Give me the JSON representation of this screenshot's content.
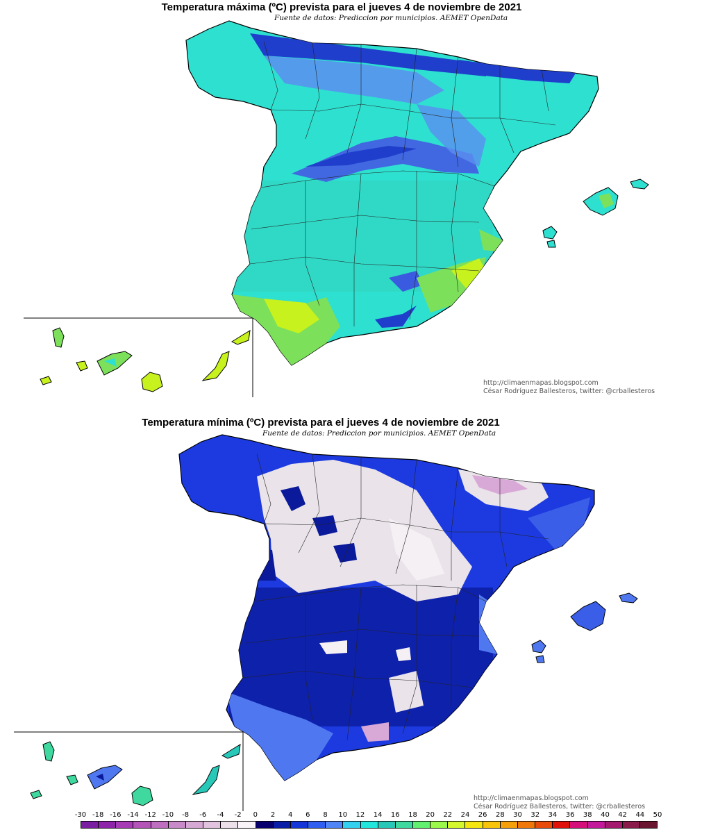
{
  "maps": {
    "max": {
      "title": "Temperatura máxima (ºC) prevista para el jueves 4 de noviembre de 2021",
      "source": "Fuente de datos: Prediccion por municipios. AEMET OpenData",
      "credit_url": "http://climaenmapas.blogspot.com",
      "credit_author": "César Rodríguez Ballesteros, twitter: @crballesteros"
    },
    "min": {
      "title": "Temperatura mínima (ºC) prevista para el jueves 4 de noviembre de 2021",
      "source": "Fuente de datos: Prediccion por municipios. AEMET OpenData",
      "credit_url": "http://climaenmapas.blogspot.com",
      "credit_author": "César Rodríguez Ballesteros, twitter: @crballesteros"
    }
  },
  "legend": {
    "labels": [
      "-30",
      "-18",
      "-16",
      "-14",
      "-12",
      "-10",
      "-8",
      "-6",
      "-4",
      "-2",
      "0",
      "2",
      "4",
      "6",
      "8",
      "10",
      "12",
      "14",
      "16",
      "18",
      "20",
      "22",
      "24",
      "26",
      "28",
      "30",
      "32",
      "34",
      "36",
      "38",
      "40",
      "42",
      "44",
      "50"
    ],
    "colors": [
      "#7a1fa2",
      "#8e24aa",
      "#a63bb5",
      "#b454b8",
      "#bf6fc0",
      "#c98ac9",
      "#d6a8d4",
      "#e2c3df",
      "#ece0ea",
      "#f7f3f6",
      "#07006e",
      "#0a1da6",
      "#1436d8",
      "#2f5ef0",
      "#4f85f5",
      "#34d0f0",
      "#22e6dc",
      "#28c8b8",
      "#3fd9a0",
      "#62f070",
      "#9cf84a",
      "#d4f72d",
      "#f5e60f",
      "#f8c40a",
      "#f5a00a",
      "#f0780a",
      "#e84b0a",
      "#e0100a",
      "#d6107a",
      "#c21a9a",
      "#a41a6e",
      "#8a1a4a",
      "#6c1530"
    ]
  },
  "colors": {
    "max_base": "#2ee0d0",
    "max_dark": "#1f3ecc",
    "max_mid": "#5a8ef0",
    "max_warm": "#7de05a",
    "max_hot": "#c8f21e",
    "min_base": "#1c3ae0",
    "min_dark": "#0a1a9a",
    "min_light": "#4f78f0",
    "min_cold": "#eae4ea",
    "min_pink": "#d8a8d6"
  }
}
